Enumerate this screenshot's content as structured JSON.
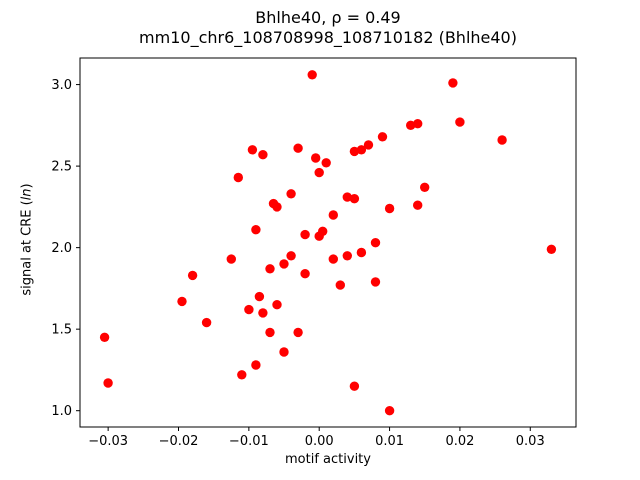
{
  "chart_data": {
    "type": "scatter",
    "title": "Bhlhe40, ρ = 0.49",
    "subtitle": "mm10_chr6_108708998_108710182 (Bhlhe40)",
    "xlabel": "motif activity",
    "ylabel": "signal at CRE (ln)",
    "ylabel_prefix": "signal at CRE (",
    "ylabel_italic": "ln",
    "ylabel_suffix": ")",
    "marker_color": "#ff0000",
    "axis_color": "#000000",
    "background_color": "#ffffff",
    "grid": false,
    "legend": "none",
    "xlim": [
      -0.034,
      0.0365
    ],
    "ylim": [
      0.9,
      3.163
    ],
    "xticks": [
      -0.03,
      -0.02,
      -0.01,
      0.0,
      0.01,
      0.02,
      0.03
    ],
    "xtick_labels": [
      "−0.03",
      "−0.02",
      "−0.01",
      "0.00",
      "0.01",
      "0.02",
      "0.03"
    ],
    "yticks": [
      1.0,
      1.5,
      2.0,
      2.5,
      3.0
    ],
    "ytick_labels": [
      "1.0",
      "1.5",
      "2.0",
      "2.5",
      "3.0"
    ],
    "points": [
      [
        -0.0305,
        1.45
      ],
      [
        -0.03,
        1.17
      ],
      [
        -0.0195,
        1.67
      ],
      [
        -0.018,
        1.83
      ],
      [
        -0.016,
        1.54
      ],
      [
        -0.0125,
        1.93
      ],
      [
        -0.0115,
        2.43
      ],
      [
        -0.011,
        1.22
      ],
      [
        -0.01,
        1.62
      ],
      [
        -0.0095,
        2.6
      ],
      [
        -0.009,
        2.11
      ],
      [
        -0.009,
        1.28
      ],
      [
        -0.0085,
        1.7
      ],
      [
        -0.008,
        2.57
      ],
      [
        -0.008,
        1.6
      ],
      [
        -0.007,
        1.87
      ],
      [
        -0.007,
        1.48
      ],
      [
        -0.0065,
        2.27
      ],
      [
        -0.006,
        2.25
      ],
      [
        -0.006,
        1.65
      ],
      [
        -0.005,
        1.9
      ],
      [
        -0.005,
        1.36
      ],
      [
        -0.004,
        2.33
      ],
      [
        -0.004,
        1.95
      ],
      [
        -0.003,
        2.61
      ],
      [
        -0.003,
        1.48
      ],
      [
        -0.002,
        2.08
      ],
      [
        -0.002,
        1.84
      ],
      [
        -0.001,
        3.06
      ],
      [
        -0.0005,
        2.55
      ],
      [
        0.0,
        2.46
      ],
      [
        0.0,
        2.07
      ],
      [
        0.0005,
        2.1
      ],
      [
        0.001,
        2.52
      ],
      [
        0.002,
        2.2
      ],
      [
        0.002,
        1.93
      ],
      [
        0.003,
        1.77
      ],
      [
        0.004,
        2.31
      ],
      [
        0.004,
        1.95
      ],
      [
        0.005,
        2.59
      ],
      [
        0.005,
        2.3
      ],
      [
        0.005,
        1.15
      ],
      [
        0.006,
        2.6
      ],
      [
        0.006,
        1.97
      ],
      [
        0.007,
        2.63
      ],
      [
        0.008,
        2.03
      ],
      [
        0.008,
        1.79
      ],
      [
        0.009,
        2.68
      ],
      [
        0.01,
        2.24
      ],
      [
        0.01,
        1.0
      ],
      [
        0.013,
        2.75
      ],
      [
        0.014,
        2.76
      ],
      [
        0.014,
        2.26
      ],
      [
        0.015,
        2.37
      ],
      [
        0.019,
        3.01
      ],
      [
        0.02,
        2.77
      ],
      [
        0.026,
        2.66
      ],
      [
        0.033,
        1.99
      ]
    ]
  }
}
